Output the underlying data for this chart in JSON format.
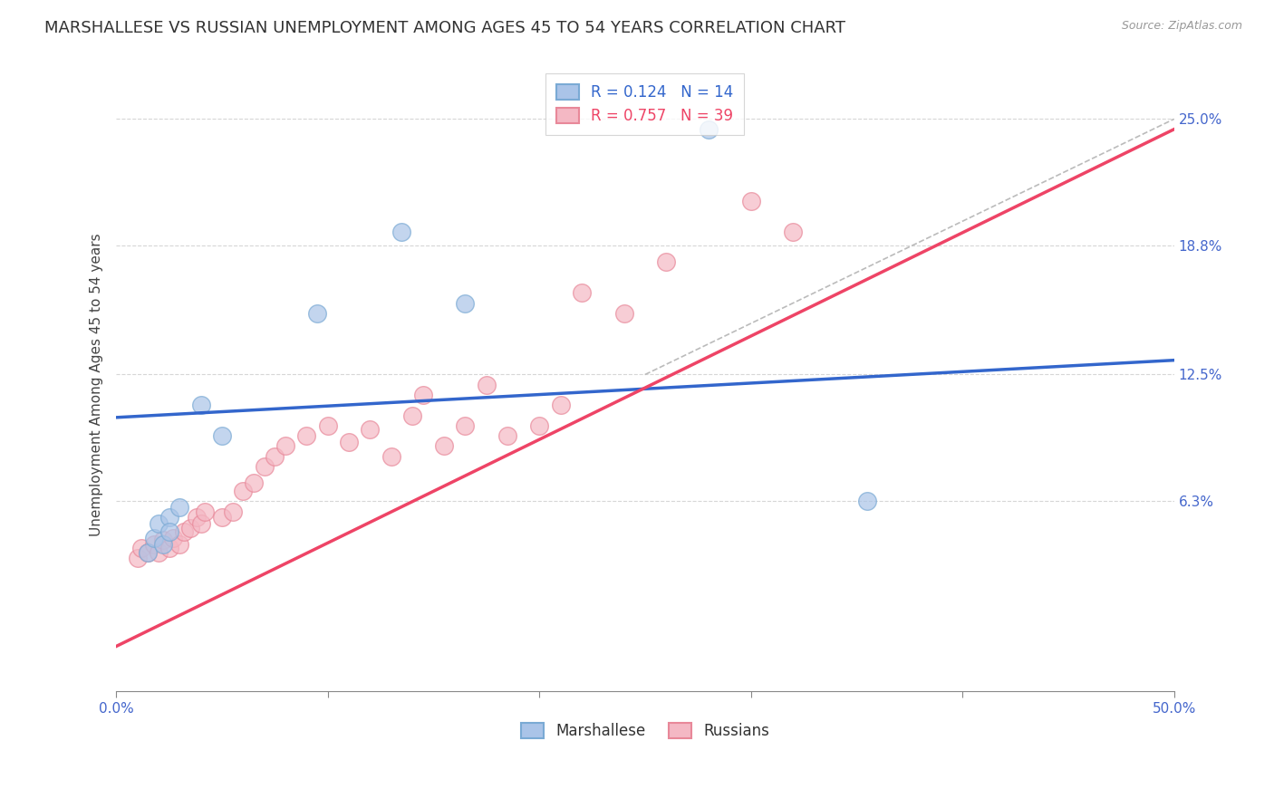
{
  "title": "MARSHALLESE VS RUSSIAN UNEMPLOYMENT AMONG AGES 45 TO 54 YEARS CORRELATION CHART",
  "source": "Source: ZipAtlas.com",
  "ylabel": "Unemployment Among Ages 45 to 54 years",
  "xlim": [
    0.0,
    0.5
  ],
  "ylim": [
    -0.03,
    0.27
  ],
  "xticks": [
    0.0,
    0.1,
    0.2,
    0.3,
    0.4,
    0.5
  ],
  "xtick_labels": [
    "0.0%",
    "",
    "",
    "",
    "",
    "50.0%"
  ],
  "ytick_positions": [
    0.063,
    0.125,
    0.188,
    0.25
  ],
  "ytick_labels": [
    "6.3%",
    "12.5%",
    "18.8%",
    "25.0%"
  ],
  "grid_color": "#cccccc",
  "background_color": "#ffffff",
  "marshallese_color": "#aac4e8",
  "marshallese_edge": "#7aaad4",
  "russian_color": "#f4b8c4",
  "russian_edge": "#e88899",
  "marshallese_R": 0.124,
  "marshallese_N": 14,
  "russian_R": 0.757,
  "russian_N": 39,
  "marshallese_x": [
    0.015,
    0.018,
    0.02,
    0.022,
    0.025,
    0.025,
    0.03,
    0.04,
    0.05,
    0.355,
    0.095,
    0.135,
    0.165,
    0.28
  ],
  "marshallese_y": [
    0.038,
    0.045,
    0.052,
    0.042,
    0.055,
    0.048,
    0.06,
    0.11,
    0.095,
    0.063,
    0.155,
    0.195,
    0.16,
    0.245
  ],
  "russian_x": [
    0.01,
    0.012,
    0.015,
    0.018,
    0.02,
    0.022,
    0.025,
    0.027,
    0.03,
    0.032,
    0.035,
    0.038,
    0.04,
    0.042,
    0.05,
    0.055,
    0.06,
    0.065,
    0.07,
    0.075,
    0.08,
    0.09,
    0.1,
    0.11,
    0.12,
    0.13,
    0.14,
    0.145,
    0.155,
    0.165,
    0.175,
    0.185,
    0.2,
    0.21,
    0.22,
    0.24,
    0.26,
    0.3,
    0.32
  ],
  "russian_y": [
    0.035,
    0.04,
    0.038,
    0.042,
    0.038,
    0.044,
    0.04,
    0.045,
    0.042,
    0.048,
    0.05,
    0.055,
    0.052,
    0.058,
    0.055,
    0.058,
    0.068,
    0.072,
    0.08,
    0.085,
    0.09,
    0.095,
    0.1,
    0.092,
    0.098,
    0.085,
    0.105,
    0.115,
    0.09,
    0.1,
    0.12,
    0.095,
    0.1,
    0.11,
    0.165,
    0.155,
    0.18,
    0.21,
    0.195
  ],
  "blue_line_x": [
    0.0,
    0.5
  ],
  "blue_line_y": [
    0.104,
    0.132
  ],
  "pink_line_x": [
    0.0,
    0.5
  ],
  "pink_line_y": [
    -0.008,
    0.245
  ],
  "diag_line_x": [
    0.25,
    0.5
  ],
  "diag_line_y": [
    0.125,
    0.25
  ],
  "title_fontsize": 13,
  "axis_label_fontsize": 11,
  "tick_fontsize": 11,
  "legend_fontsize": 12
}
